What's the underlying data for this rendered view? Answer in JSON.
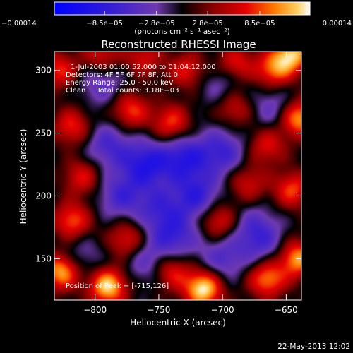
{
  "chart_data": {
    "type": "heatmap",
    "title": "Reconstructed RHESSI Image",
    "xlabel": "Heliocentric X (arcsec)",
    "ylabel": "Heliocentric Y (arcsec)",
    "xlim": [
      -832,
      -638
    ],
    "ylim": [
      117,
      315
    ],
    "x_ticks": [
      -800,
      -750,
      -700,
      -650
    ],
    "y_ticks": [
      150,
      200,
      250,
      300
    ],
    "x_tick_labels": [
      "−800",
      "−750",
      "−700",
      "−650"
    ],
    "y_tick_labels": [
      "150",
      "200",
      "250",
      "300"
    ],
    "colorbar": {
      "min": -0.00014,
      "max": 0.00014,
      "tick_labels": [
        "−0.00014",
        "−8.5e−05",
        "−2.8e−05",
        "2.8e−05",
        "8.5e−05",
        "0.00014"
      ],
      "tick_values": [
        -0.00014,
        -8.5e-05,
        -2.8e-05,
        2.8e-05,
        8.5e-05,
        0.00014
      ],
      "unit_label": "(photons cm⁻² s⁻¹ asec⁻²)"
    },
    "annotations": {
      "time_range": "1-Jul-2003 01:00:52.000 to 01:04:12.000",
      "detectors": "Detectors: 4F 5F 6F 7F 8F, Att 0",
      "energy": "Energy Range: 25.0 - 50.0 keV",
      "clean": "Clean     Total counts: 3.18E+03",
      "peak": "Position of Peak = [-715,126]"
    },
    "peak": [
      -715,
      126
    ],
    "blobs": [
      {
        "x": -715,
        "y": 126,
        "v": 1.0
      },
      {
        "x": -790,
        "y": 128,
        "v": 0.95
      },
      {
        "x": -826,
        "y": 140,
        "v": 0.9
      },
      {
        "x": -740,
        "y": 140,
        "v": 0.55
      },
      {
        "x": -665,
        "y": 134,
        "v": 0.75
      },
      {
        "x": -641,
        "y": 150,
        "v": 0.8
      },
      {
        "x": -645,
        "y": 205,
        "v": 0.6
      },
      {
        "x": -775,
        "y": 165,
        "v": 0.55
      },
      {
        "x": -818,
        "y": 180,
        "v": 0.65
      },
      {
        "x": -810,
        "y": 215,
        "v": 0.5
      },
      {
        "x": -703,
        "y": 180,
        "v": 0.55
      },
      {
        "x": -680,
        "y": 210,
        "v": 0.45
      },
      {
        "x": -665,
        "y": 240,
        "v": 0.5
      },
      {
        "x": -640,
        "y": 262,
        "v": 0.85
      },
      {
        "x": -660,
        "y": 300,
        "v": 0.65
      },
      {
        "x": -645,
        "y": 313,
        "v": 0.85
      },
      {
        "x": -690,
        "y": 305,
        "v": 0.55
      },
      {
        "x": -728,
        "y": 300,
        "v": 0.5
      },
      {
        "x": -762,
        "y": 310,
        "v": 0.45
      },
      {
        "x": -795,
        "y": 312,
        "v": 0.5
      },
      {
        "x": -828,
        "y": 300,
        "v": 0.55
      },
      {
        "x": -772,
        "y": 268,
        "v": 0.6
      },
      {
        "x": -740,
        "y": 258,
        "v": 0.6
      },
      {
        "x": -818,
        "y": 255,
        "v": 0.55
      },
      {
        "x": -690,
        "y": 270,
        "v": 0.45
      },
      {
        "x": -760,
        "y": 225,
        "v": -0.65
      },
      {
        "x": -730,
        "y": 230,
        "v": -0.6
      },
      {
        "x": -720,
        "y": 200,
        "v": -0.55
      },
      {
        "x": -780,
        "y": 200,
        "v": -0.45
      },
      {
        "x": -700,
        "y": 235,
        "v": -0.5
      },
      {
        "x": -738,
        "y": 168,
        "v": -0.5
      },
      {
        "x": -790,
        "y": 240,
        "v": -0.45
      },
      {
        "x": -700,
        "y": 150,
        "v": -0.4
      },
      {
        "x": -675,
        "y": 175,
        "v": -0.35
      },
      {
        "x": -750,
        "y": 190,
        "v": -0.4
      },
      {
        "x": -795,
        "y": 290,
        "v": -0.35
      },
      {
        "x": -700,
        "y": 290,
        "v": -0.3
      },
      {
        "x": -660,
        "y": 270,
        "v": -0.35
      },
      {
        "x": -812,
        "y": 150,
        "v": -0.3
      },
      {
        "x": -760,
        "y": 148,
        "v": -0.35
      },
      {
        "x": -668,
        "y": 160,
        "v": -0.3
      }
    ]
  },
  "footer": {
    "date": "22-May-2013 12:02"
  }
}
